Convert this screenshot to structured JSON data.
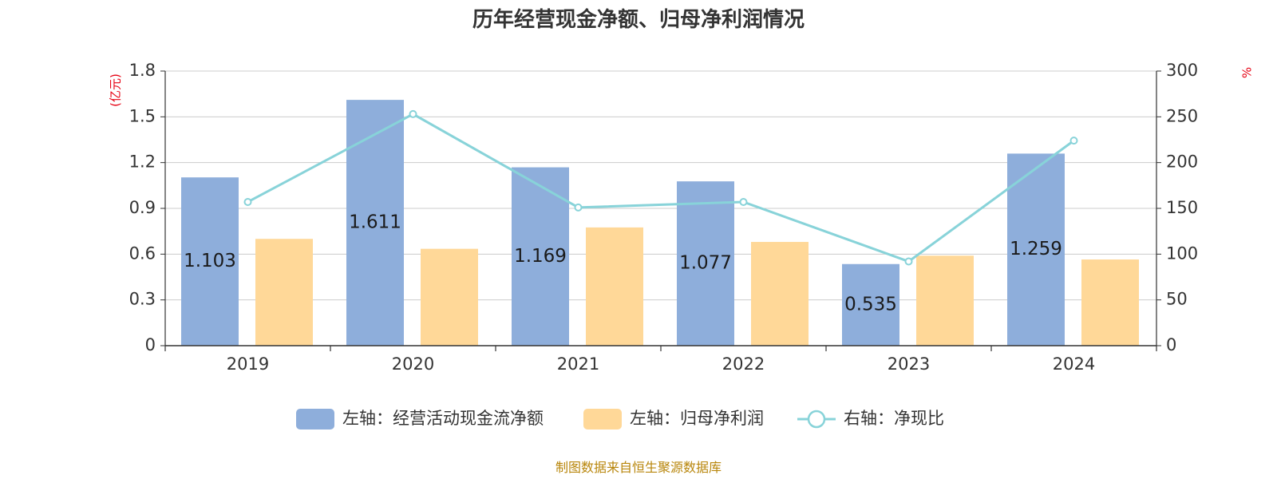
{
  "chart_data": {
    "type": "bar",
    "title": "历年经营现金净额、归母净利润情况",
    "categories": [
      "2019",
      "2020",
      "2021",
      "2022",
      "2023",
      "2024"
    ],
    "left_axis": {
      "unit": "(亿元)",
      "ylim": [
        0,
        1.8
      ],
      "ticks": [
        "0",
        "0.3",
        "0.6",
        "0.9",
        "1.2",
        "1.5",
        "1.8"
      ]
    },
    "right_axis": {
      "unit": "%",
      "ylim": [
        0,
        300
      ],
      "ticks": [
        "0",
        "50",
        "100",
        "150",
        "200",
        "250",
        "300"
      ]
    },
    "series": [
      {
        "name": "左轴：经营活动现金流净额",
        "type": "bar",
        "axis": "left",
        "color": "#8eaedb",
        "values": [
          1.103,
          1.611,
          1.169,
          1.077,
          0.535,
          1.259
        ],
        "labels": [
          "1.103",
          "1.611",
          "1.169",
          "1.077",
          "0.535",
          "1.259"
        ]
      },
      {
        "name": "左轴：归母净利润",
        "type": "bar",
        "axis": "left",
        "color": "#ffd898",
        "values": [
          0.7,
          0.635,
          0.775,
          0.68,
          0.59,
          0.565
        ]
      },
      {
        "name": "右轴：净现比",
        "type": "line",
        "axis": "right",
        "color": "#88d3d9",
        "values": [
          157,
          253,
          151,
          157,
          92,
          224
        ]
      }
    ],
    "grid": true,
    "legend": "bottom-center"
  },
  "source": "制图数据来自恒生聚源数据库"
}
